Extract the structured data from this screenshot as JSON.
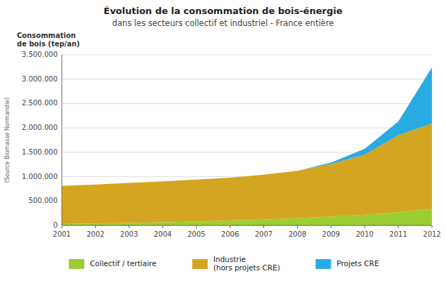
{
  "chart_data": {
    "type": "area",
    "stacked": true,
    "title": "Évolution de la consommation de bois-énergie",
    "subtitle": "dans les secteurs collectif et industriel - France entière",
    "ylabel": "Consommation\nde bois (tep/an)",
    "annotations": [
      "(Source Biomasse Normandie)"
    ],
    "x": [
      2001,
      2002,
      2003,
      2004,
      2005,
      2006,
      2007,
      2008,
      2009,
      2010,
      2011,
      2012
    ],
    "xlim": [
      2001,
      2012
    ],
    "xticks": [
      2001,
      2002,
      2003,
      2004,
      2005,
      2006,
      2007,
      2008,
      2009,
      2010,
      2011,
      2012
    ],
    "ylim": [
      0,
      3500000
    ],
    "yticks": [
      0,
      {
        "value": 500000,
        "label": "500.000"
      },
      {
        "value": 1000000,
        "label": "1.000.000"
      },
      {
        "value": 1500000,
        "label": "1.500.000"
      },
      {
        "value": 2000000,
        "label": "2.000.000"
      },
      {
        "value": 2500000,
        "label": "2.500.000"
      },
      {
        "value": 3000000,
        "label": "3.000.000"
      },
      {
        "value": 3500000,
        "label": "3.500.000"
      }
    ],
    "grid": true,
    "legend": "bottom",
    "series": [
      {
        "name": "Collectif / tertiaire",
        "color": "#9ACD32",
        "values": [
          30000,
          40000,
          50000,
          65000,
          80000,
          100000,
          120000,
          150000,
          180000,
          220000,
          270000,
          340000
        ]
      },
      {
        "name": "Industrie\n(hors projets CRE)",
        "color": "#D4A520",
        "values": [
          780000,
          800000,
          820000,
          840000,
          860000,
          880000,
          920000,
          970000,
          1080000,
          1230000,
          1580000,
          1750000
        ]
      },
      {
        "name": "Projets CRE",
        "color": "#29ABE2",
        "values": [
          0,
          0,
          0,
          0,
          0,
          0,
          0,
          0,
          30000,
          120000,
          280000,
          1150000
        ]
      }
    ]
  }
}
